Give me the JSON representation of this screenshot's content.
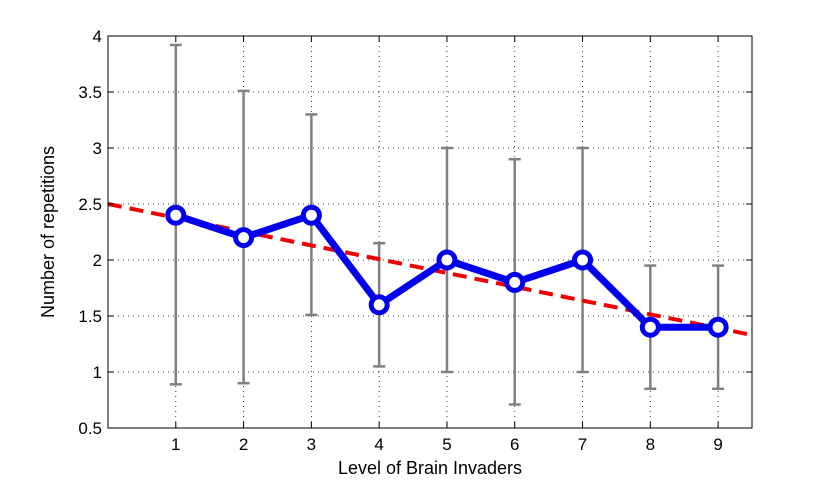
{
  "chart_data": {
    "type": "line",
    "xlabel": "Level of Brain Invaders",
    "ylabel": "Number of repetitions",
    "xlim": [
      0,
      9.5
    ],
    "ylim": [
      0.5,
      4
    ],
    "x_ticks": [
      1,
      2,
      3,
      4,
      5,
      6,
      7,
      8,
      9
    ],
    "y_ticks": [
      0.5,
      1,
      1.5,
      2,
      2.5,
      3,
      3.5,
      4
    ],
    "y_tick_labels": [
      "0.5",
      "1",
      "1.5",
      "2",
      "2.5",
      "3",
      "3.5",
      "4"
    ],
    "grid": true,
    "series": [
      {
        "type": "line-with-errorbars",
        "color": "#0000ee",
        "error_color": "#808080",
        "x": [
          1,
          2,
          3,
          4,
          5,
          6,
          7,
          8,
          9
        ],
        "y": [
          2.4,
          2.2,
          2.4,
          1.6,
          2.0,
          1.8,
          2.0,
          1.4,
          1.4
        ],
        "err_low": [
          0.89,
          0.9,
          1.51,
          1.05,
          1.0,
          0.71,
          1.0,
          0.85,
          0.85
        ],
        "err_high": [
          3.92,
          3.51,
          3.3,
          2.15,
          3.0,
          2.9,
          3.0,
          1.95,
          1.95
        ]
      },
      {
        "type": "trend-line",
        "color": "#ee0000",
        "dashed": true,
        "x": [
          0,
          9.5
        ],
        "y": [
          2.5,
          1.33
        ]
      }
    ]
  }
}
